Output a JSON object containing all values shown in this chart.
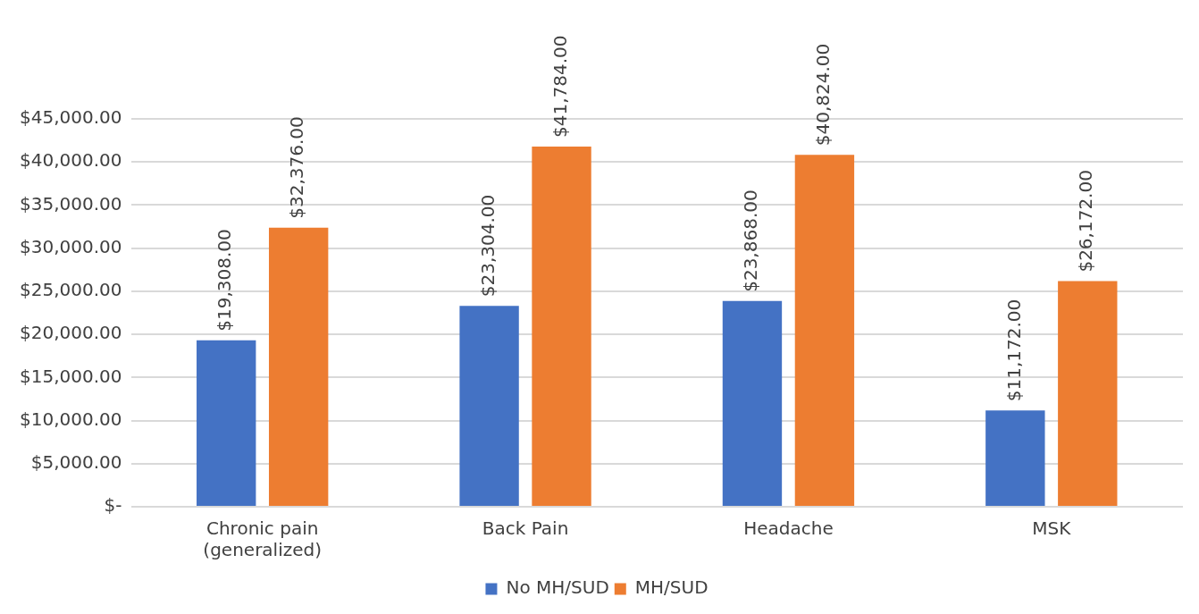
{
  "chart_data": {
    "type": "bar",
    "categories": [
      "Chronic pain (generalized)",
      "Back Pain",
      "Headache",
      "MSK"
    ],
    "series": [
      {
        "name": "No MH/SUD",
        "color": "#4472c4",
        "values": [
          19308,
          23304,
          23868,
          11172
        ],
        "value_labels": [
          "$19,308.00",
          "$23,304.00",
          "$23,868.00",
          "$11,172.00"
        ]
      },
      {
        "name": "MH/SUD",
        "color": "#ed7d31",
        "values": [
          32376,
          41784,
          40824,
          26172
        ],
        "value_labels": [
          "$32,376.00",
          "$41,784.00",
          "$40,824.00",
          "$26,172.00"
        ]
      }
    ],
    "ylim": [
      0,
      45000
    ],
    "yticks": [
      {
        "value": 0,
        "label": "$-"
      },
      {
        "value": 5000,
        "label": "$5,000.00"
      },
      {
        "value": 10000,
        "label": "$10,000.00"
      },
      {
        "value": 15000,
        "label": "$15,000.00"
      },
      {
        "value": 20000,
        "label": "$20,000.00"
      },
      {
        "value": 25000,
        "label": "$25,000.00"
      },
      {
        "value": 30000,
        "label": "$30,000.00"
      },
      {
        "value": 35000,
        "label": "$35,000.00"
      },
      {
        "value": 40000,
        "label": "$40,000.00"
      },
      {
        "value": 45000,
        "label": "$45,000.00"
      }
    ],
    "grid": "y",
    "legend": "bottom"
  }
}
